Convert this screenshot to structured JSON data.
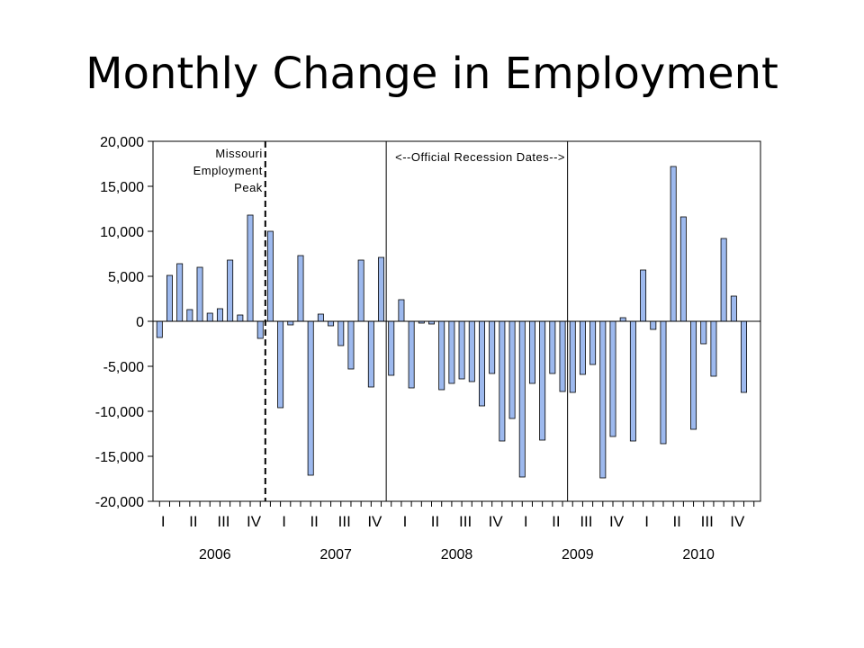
{
  "title": "Monthly Change in Employment",
  "chart_data": {
    "type": "bar",
    "title": "Monthly Change in Employment",
    "xlabel": "",
    "ylabel": "",
    "ylim": [
      -20000,
      20000
    ],
    "yticks": [
      20000,
      15000,
      10000,
      5000,
      0,
      -5000,
      -10000,
      -15000,
      -20000
    ],
    "ytick_labels": [
      "20,000",
      "15,000",
      "10,000",
      "5,000",
      "0",
      "-5,000",
      "-10,000",
      "-15,000",
      "-20,000"
    ],
    "quarter_labels": [
      "I",
      "II",
      "III",
      "IV",
      "I",
      "II",
      "III",
      "IV",
      "I",
      "II",
      "III",
      "IV",
      "I",
      "II",
      "III",
      "IV",
      "I",
      "II",
      "III",
      "IV"
    ],
    "years": [
      "2006",
      "2007",
      "2008",
      "2009",
      "2010"
    ],
    "grid": false,
    "bar_color": "#9db9ee",
    "categories": [
      "2006-01",
      "2006-02",
      "2006-03",
      "2006-04",
      "2006-05",
      "2006-06",
      "2006-07",
      "2006-08",
      "2006-09",
      "2006-10",
      "2006-11",
      "2006-12",
      "2007-01",
      "2007-02",
      "2007-03",
      "2007-04",
      "2007-05",
      "2007-06",
      "2007-07",
      "2007-08",
      "2007-09",
      "2007-10",
      "2007-11",
      "2007-12",
      "2008-01",
      "2008-02",
      "2008-03",
      "2008-04",
      "2008-05",
      "2008-06",
      "2008-07",
      "2008-08",
      "2008-09",
      "2008-10",
      "2008-11",
      "2008-12",
      "2009-01",
      "2009-02",
      "2009-03",
      "2009-04",
      "2009-05",
      "2009-06",
      "2009-07",
      "2009-08",
      "2009-09",
      "2009-10",
      "2009-11",
      "2009-12",
      "2010-01",
      "2010-02",
      "2010-03",
      "2010-04",
      "2010-05",
      "2010-06",
      "2010-07",
      "2010-08",
      "2010-09",
      "2010-10",
      "2010-11",
      "2010-12"
    ],
    "values": [
      -1800,
      5100,
      6400,
      1300,
      6000,
      900,
      1400,
      6800,
      700,
      11800,
      -1900,
      10000,
      -9600,
      -400,
      7300,
      -17100,
      800,
      -500,
      -2700,
      -5300,
      6800,
      -7300,
      7100,
      -6000,
      2400,
      -7400,
      -200,
      -300,
      -7600,
      -6900,
      -6400,
      -6700,
      -9400,
      -5800,
      -13300,
      -10800,
      -17300,
      -6900,
      -13200,
      -5800,
      -7800,
      -7900,
      -5900,
      -4800,
      -17400,
      -12800,
      400,
      -13300,
      5700,
      -900,
      -13600,
      17200,
      11600,
      -12000,
      -2500,
      -6100,
      9200,
      2800,
      -7900,
      0
    ],
    "annotations": [
      {
        "type": "dashed_vline",
        "after_category": "2006-11",
        "text_lines": [
          "Missouri",
          "Employment",
          "Peak"
        ]
      },
      {
        "type": "vline",
        "after_category": "2007-11",
        "text": "<--Official Recession Dates-->"
      },
      {
        "type": "vline",
        "after_category": "2009-05"
      }
    ]
  }
}
